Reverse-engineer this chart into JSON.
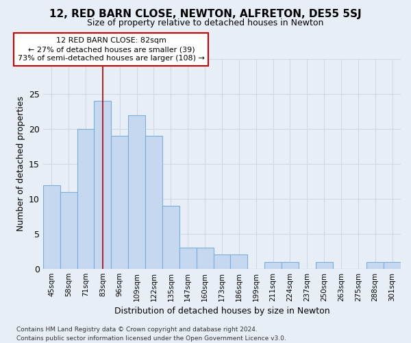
{
  "title": "12, RED BARN CLOSE, NEWTON, ALFRETON, DE55 5SJ",
  "subtitle": "Size of property relative to detached houses in Newton",
  "xlabel": "Distribution of detached houses by size in Newton",
  "ylabel": "Number of detached properties",
  "footer_line1": "Contains HM Land Registry data © Crown copyright and database right 2024.",
  "footer_line2": "Contains public sector information licensed under the Open Government Licence v3.0.",
  "categories": [
    "45sqm",
    "58sqm",
    "71sqm",
    "83sqm",
    "96sqm",
    "109sqm",
    "122sqm",
    "135sqm",
    "147sqm",
    "160sqm",
    "173sqm",
    "186sqm",
    "199sqm",
    "211sqm",
    "224sqm",
    "237sqm",
    "250sqm",
    "263sqm",
    "275sqm",
    "288sqm",
    "301sqm"
  ],
  "values": [
    12,
    11,
    20,
    24,
    19,
    22,
    19,
    9,
    3,
    3,
    2,
    2,
    0,
    1,
    1,
    0,
    1,
    0,
    0,
    1,
    1
  ],
  "bar_color": "#c5d8f0",
  "bar_edge_color": "#7aaed4",
  "grid_color": "#d0d8e4",
  "background_color": "#e8eef6",
  "vline_x": 3,
  "vline_color": "#aa0000",
  "annotation_line1": "12 RED BARN CLOSE: 82sqm",
  "annotation_line2": "← 27% of detached houses are smaller (39)",
  "annotation_line3": "73% of semi-detached houses are larger (108) →",
  "annotation_box_color": "#ffffff",
  "annotation_box_edge": "#cc0000",
  "ylim": [
    0,
    30
  ],
  "yticks": [
    0,
    5,
    10,
    15,
    20,
    25,
    30
  ]
}
